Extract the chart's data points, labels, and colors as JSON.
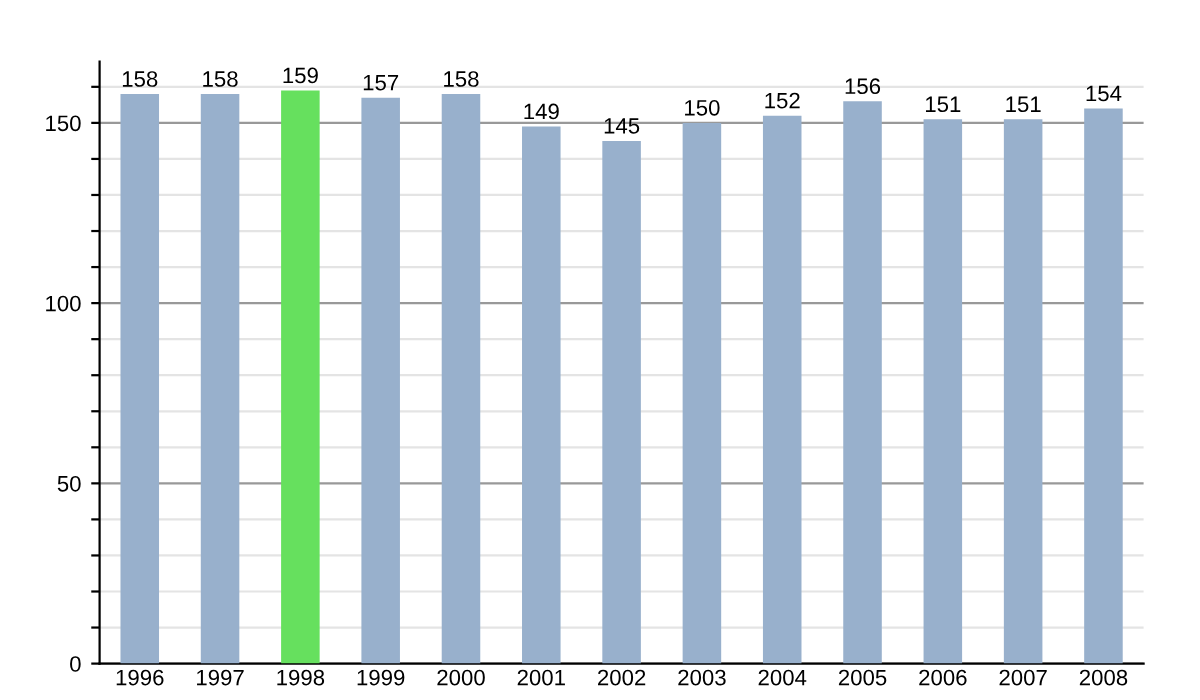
{
  "chart_data": {
    "type": "bar",
    "categories": [
      "1996",
      "1997",
      "1998",
      "1999",
      "2000",
      "2001",
      "2002",
      "2003",
      "2004",
      "2005",
      "2006",
      "2007",
      "2008"
    ],
    "values": [
      158,
      158,
      159,
      157,
      158,
      149,
      145,
      150,
      152,
      156,
      151,
      151,
      154
    ],
    "colors": [
      "#98b0cc",
      "#98b0cc",
      "#66e05e",
      "#98b0cc",
      "#98b0cc",
      "#98b0cc",
      "#98b0cc",
      "#98b0cc",
      "#98b0cc",
      "#98b0cc",
      "#98b0cc",
      "#98b0cc",
      "#98b0cc"
    ],
    "data_labels": true,
    "ylim": [
      0,
      167
    ],
    "yticks": [
      0,
      {
        "value": 10,
        "label": null
      },
      {
        "value": 20,
        "label": null
      },
      {
        "value": 30,
        "label": null
      },
      {
        "value": 40,
        "label": null
      },
      50,
      {
        "value": 60,
        "label": null
      },
      {
        "value": 70,
        "label": null
      },
      {
        "value": 80,
        "label": null
      },
      {
        "value": 90,
        "label": null
      },
      100,
      {
        "value": 110,
        "label": null
      },
      {
        "value": 120,
        "label": null
      },
      {
        "value": 130,
        "label": null
      },
      {
        "value": 140,
        "label": null
      },
      150,
      {
        "value": 160,
        "label": null
      }
    ],
    "grid": "y"
  }
}
